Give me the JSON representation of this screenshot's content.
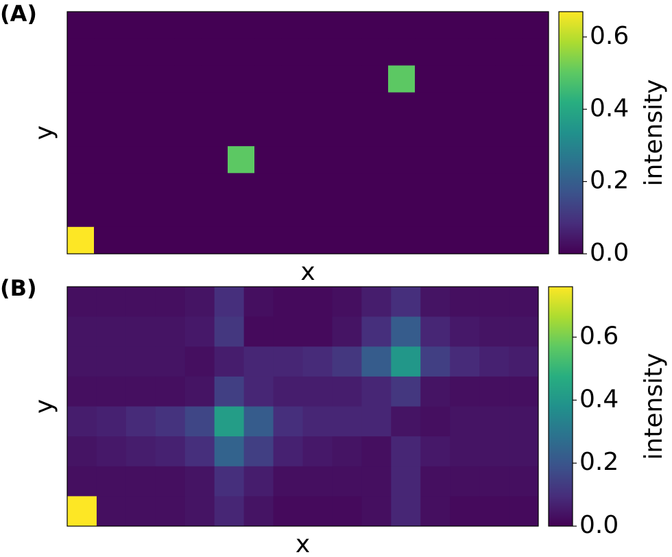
{
  "chart_data": [
    {
      "type": "heatmap",
      "panel_label": "(A)",
      "xlabel": "x",
      "ylabel": "y",
      "colorbar_label": "intensity",
      "colormap": "viridis",
      "clim": [
        0,
        0.67
      ],
      "cticks": [
        {
          "value": 0,
          "label": "0.0"
        },
        0.2,
        0.4,
        0.6
      ],
      "values": [
        [
          0,
          0,
          0,
          0,
          0,
          0,
          0,
          0,
          0,
          0,
          0,
          0,
          0,
          0,
          0,
          0,
          0,
          0
        ],
        [
          0,
          0,
          0,
          0,
          0,
          0,
          0,
          0,
          0,
          0,
          0,
          0,
          0,
          0,
          0,
          0,
          0,
          0
        ],
        [
          0,
          0,
          0,
          0,
          0,
          0,
          0,
          0,
          0,
          0,
          0,
          0,
          0.5,
          0,
          0,
          0,
          0,
          0
        ],
        [
          0,
          0,
          0,
          0,
          0,
          0,
          0,
          0,
          0,
          0,
          0,
          0,
          0,
          0,
          0,
          0,
          0,
          0
        ],
        [
          0,
          0,
          0,
          0,
          0,
          0,
          0,
          0,
          0,
          0,
          0,
          0,
          0,
          0,
          0,
          0,
          0,
          0
        ],
        [
          0,
          0,
          0,
          0,
          0,
          0,
          0.5,
          0,
          0,
          0,
          0,
          0,
          0,
          0,
          0,
          0,
          0,
          0
        ],
        [
          0,
          0,
          0,
          0,
          0,
          0,
          0,
          0,
          0,
          0,
          0,
          0,
          0,
          0,
          0,
          0,
          0,
          0
        ],
        [
          0,
          0,
          0,
          0,
          0,
          0,
          0,
          0,
          0,
          0,
          0,
          0,
          0,
          0,
          0,
          0,
          0,
          0
        ],
        [
          0.67,
          0,
          0,
          0,
          0,
          0,
          0,
          0,
          0,
          0,
          0,
          0,
          0,
          0,
          0,
          0,
          0,
          0
        ]
      ]
    },
    {
      "type": "heatmap",
      "panel_label": "(B)",
      "xlabel": "x",
      "ylabel": "y",
      "colorbar_label": "intensity",
      "colormap": "viridis",
      "clim": [
        0,
        0.76
      ],
      "cticks": [
        {
          "value": 0,
          "label": "0.0"
        },
        0.2,
        0.4,
        0.6
      ],
      "values": [
        [
          0.03,
          0.03,
          0.03,
          0.03,
          0.04,
          0.1,
          0.03,
          0.02,
          0.02,
          0.03,
          0.06,
          0.1,
          0.04,
          0.03,
          0.03,
          0.03
        ],
        [
          0.04,
          0.04,
          0.04,
          0.04,
          0.05,
          0.12,
          0.02,
          0.02,
          0.02,
          0.04,
          0.1,
          0.22,
          0.08,
          0.05,
          0.04,
          0.04
        ],
        [
          0.04,
          0.04,
          0.04,
          0.04,
          0.03,
          0.06,
          0.08,
          0.08,
          0.09,
          0.12,
          0.22,
          0.4,
          0.14,
          0.09,
          0.07,
          0.06
        ],
        [
          0.03,
          0.03,
          0.03,
          0.03,
          0.04,
          0.14,
          0.08,
          0.06,
          0.06,
          0.06,
          0.08,
          0.12,
          0.04,
          0.03,
          0.03,
          0.03
        ],
        [
          0.06,
          0.07,
          0.09,
          0.11,
          0.16,
          0.42,
          0.22,
          0.1,
          0.08,
          0.08,
          0.08,
          0.04,
          0.03,
          0.04,
          0.04,
          0.04
        ],
        [
          0.04,
          0.05,
          0.06,
          0.07,
          0.1,
          0.24,
          0.14,
          0.07,
          0.05,
          0.04,
          0.03,
          0.08,
          0.05,
          0.04,
          0.04,
          0.04
        ],
        [
          0.03,
          0.03,
          0.03,
          0.03,
          0.04,
          0.1,
          0.06,
          0.03,
          0.03,
          0.03,
          0.03,
          0.08,
          0.03,
          0.03,
          0.03,
          0.03
        ],
        [
          0.76,
          0.03,
          0.03,
          0.03,
          0.04,
          0.08,
          0.04,
          0.02,
          0.02,
          0.02,
          0.03,
          0.08,
          0.03,
          0.02,
          0.02,
          0.02
        ]
      ]
    }
  ]
}
